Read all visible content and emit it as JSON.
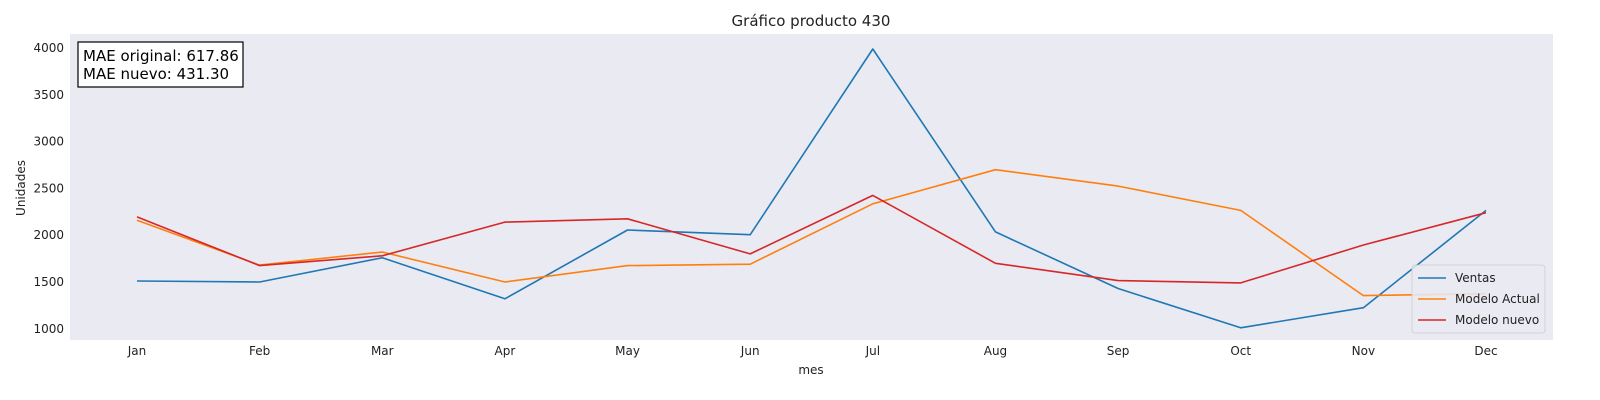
{
  "chart_data": {
    "type": "line",
    "title": "Gráfico producto 430",
    "xlabel": "mes",
    "ylabel": "Unidades",
    "categories": [
      "Jan",
      "Feb",
      "Mar",
      "Apr",
      "May",
      "Jun",
      "Jul",
      "Aug",
      "Sep",
      "Oct",
      "Nov",
      "Dec"
    ],
    "ylim": [
      880,
      4150
    ],
    "yticks": [
      1000,
      1500,
      2000,
      2500,
      3000,
      3500,
      4000
    ],
    "grid": false,
    "legend_position": "bottom-right",
    "series": [
      {
        "name": "Ventas",
        "color": "#1f77b4",
        "values": [
          1510,
          1500,
          1760,
          1320,
          2055,
          2005,
          3990,
          2035,
          1430,
          1010,
          1225,
          2265
        ]
      },
      {
        "name": "Modelo Actual",
        "color": "#ff7f0e",
        "values": [
          2160,
          1680,
          1820,
          1500,
          1675,
          1690,
          2335,
          2700,
          2525,
          2265,
          1355,
          1375
        ]
      },
      {
        "name": "Modelo nuevo",
        "color": "#d62728",
        "values": [
          2195,
          1675,
          1780,
          2140,
          2175,
          1800,
          2425,
          1700,
          1515,
          1490,
          1895,
          2240
        ]
      }
    ],
    "annotation": {
      "line1": "MAE original: 617.86",
      "line2": "MAE nuevo: 431.30"
    }
  }
}
